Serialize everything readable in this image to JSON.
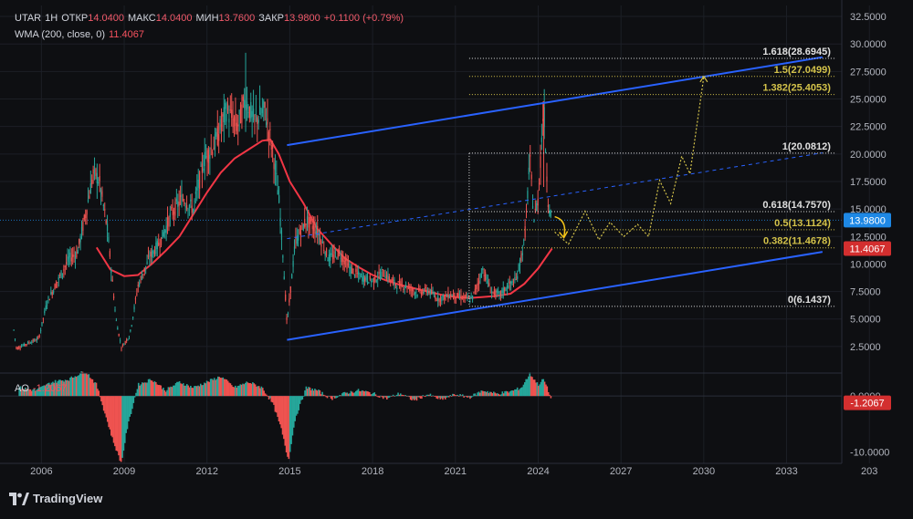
{
  "header": {
    "symbol": "UTAR",
    "interval": "1H",
    "open_label": "ОТКР",
    "open": "14.0400",
    "high_label": "МАКС",
    "high": "14.0400",
    "low_label": "МИН",
    "low": "13.7600",
    "close_label": "ЗАКР",
    "close": "13.9800",
    "change": "+0.1100 (+0.79%)"
  },
  "wma_legend": {
    "label": "WMA (200, close, 0)",
    "value": "11.4067"
  },
  "ao_legend": {
    "label": "AO",
    "value": "-1.2067"
  },
  "brand": "TradingView",
  "colors": {
    "background": "#0e0f12",
    "candle_up": "#26a69a",
    "candle_down": "#ef5350",
    "wma": "#f23645",
    "channel": "#2962ff",
    "fib_white": "#e0e0e0",
    "fib_yellow": "#d4c34a",
    "price_tag": "#1e88e5",
    "wma_tag": "#d32f2f"
  },
  "chart_data": {
    "type": "candlestick",
    "x_axis": {
      "ticks": [
        "2006",
        "2009",
        "2012",
        "2015",
        "2018",
        "2021",
        "2024",
        "2027",
        "2030",
        "2033",
        "203"
      ],
      "range": [
        2004.5,
        2035
      ]
    },
    "y_axis": {
      "ticks": [
        "32.5000",
        "30.0000",
        "27.5000",
        "25.0000",
        "22.5000",
        "20.0000",
        "17.5000",
        "15.0000",
        "12.5000",
        "10.0000",
        "7.5000",
        "5.0000",
        "2.5000"
      ],
      "range": [
        0.5,
        33.5
      ]
    },
    "price_series": [
      [
        2005.0,
        4
      ],
      [
        2005.1,
        2.3
      ],
      [
        2005.5,
        2.8
      ],
      [
        2005.9,
        3.2
      ],
      [
        2006.2,
        6.5
      ],
      [
        2006.6,
        8.5
      ],
      [
        2007.0,
        10.5
      ],
      [
        2007.3,
        11
      ],
      [
        2007.6,
        14.5
      ],
      [
        2007.9,
        18.5
      ],
      [
        2008.1,
        17.5
      ],
      [
        2008.4,
        13
      ],
      [
        2008.7,
        5
      ],
      [
        2008.9,
        2.4
      ],
      [
        2009.2,
        3.5
      ],
      [
        2009.5,
        8
      ],
      [
        2009.9,
        10.5
      ],
      [
        2010.3,
        12
      ],
      [
        2010.7,
        14.5
      ],
      [
        2011.1,
        16
      ],
      [
        2011.5,
        15
      ],
      [
        2011.9,
        19.5
      ],
      [
        2012.3,
        21
      ],
      [
        2012.7,
        24
      ],
      [
        2013.1,
        22.5
      ],
      [
        2013.4,
        25
      ],
      [
        2013.7,
        23
      ],
      [
        2014.1,
        24
      ],
      [
        2014.4,
        20
      ],
      [
        2014.6,
        16
      ],
      [
        2014.75,
        11
      ],
      [
        2014.9,
        4.5
      ],
      [
        2015.2,
        12
      ],
      [
        2015.6,
        14
      ],
      [
        2016.0,
        13
      ],
      [
        2016.4,
        10.5
      ],
      [
        2016.8,
        11
      ],
      [
        2017.2,
        9.5
      ],
      [
        2017.6,
        8.8
      ],
      [
        2018.0,
        8.5
      ],
      [
        2018.4,
        9.2
      ],
      [
        2018.8,
        8.2
      ],
      [
        2019.2,
        8
      ],
      [
        2019.6,
        7.4
      ],
      [
        2020.0,
        7.6
      ],
      [
        2020.4,
        6.8
      ],
      [
        2020.8,
        7.2
      ],
      [
        2021.2,
        7
      ],
      [
        2021.6,
        6.8
      ],
      [
        2022.0,
        9.5
      ],
      [
        2022.3,
        7.5
      ],
      [
        2022.6,
        7.2
      ],
      [
        2022.9,
        8
      ],
      [
        2023.2,
        8.5
      ],
      [
        2023.5,
        12
      ],
      [
        2023.7,
        19.5
      ],
      [
        2023.85,
        14
      ],
      [
        2024.0,
        16
      ],
      [
        2024.2,
        24.5
      ],
      [
        2024.35,
        16
      ],
      [
        2024.5,
        13.98
      ]
    ],
    "wma_series": [
      [
        2008.0,
        11.5
      ],
      [
        2008.5,
        9.5
      ],
      [
        2009.0,
        8.9
      ],
      [
        2009.5,
        9
      ],
      [
        2010.0,
        10
      ],
      [
        2010.5,
        11.2
      ],
      [
        2011.0,
        12.5
      ],
      [
        2011.5,
        14.5
      ],
      [
        2012.0,
        16.5
      ],
      [
        2012.5,
        18.3
      ],
      [
        2013.0,
        19.6
      ],
      [
        2013.5,
        20.4
      ],
      [
        2014.0,
        21.2
      ],
      [
        2014.3,
        21.3
      ],
      [
        2014.6,
        20
      ],
      [
        2015.0,
        17.5
      ],
      [
        2015.5,
        15.5
      ],
      [
        2016.0,
        13.2
      ],
      [
        2016.5,
        11.8
      ],
      [
        2017.0,
        10.5
      ],
      [
        2017.5,
        9.7
      ],
      [
        2018.0,
        9
      ],
      [
        2018.5,
        8.5
      ],
      [
        2019.0,
        8.1
      ],
      [
        2019.5,
        7.8
      ],
      [
        2020.0,
        7.5
      ],
      [
        2020.5,
        7.2
      ],
      [
        2021.0,
        7
      ],
      [
        2021.5,
        6.9
      ],
      [
        2022.0,
        7
      ],
      [
        2022.5,
        7.1
      ],
      [
        2023.0,
        7.3
      ],
      [
        2023.5,
        8.2
      ],
      [
        2024.0,
        9.6
      ],
      [
        2024.5,
        11.4067
      ]
    ],
    "fibonacci": {
      "x_range": [
        2021.5,
        2034.8
      ],
      "levels": [
        {
          "label": "1.618(28.6945)",
          "value": 28.6945,
          "color": "white"
        },
        {
          "label": "1.5(27.0499)",
          "value": 27.0499,
          "color": "yellow"
        },
        {
          "label": "1.382(25.4053)",
          "value": 25.4053,
          "color": "yellow"
        },
        {
          "label": "1(20.0812)",
          "value": 20.0812,
          "color": "white"
        },
        {
          "label": "0.618(14.7570)",
          "value": 14.757,
          "color": "white"
        },
        {
          "label": "0.5(13.1124)",
          "value": 13.1124,
          "color": "yellow"
        },
        {
          "label": "0.382(11.4678)",
          "value": 11.4678,
          "color": "yellow"
        },
        {
          "label": "0(6.1437)",
          "value": 6.1437,
          "color": "white"
        }
      ]
    },
    "channel": {
      "upper": [
        [
          2014.9,
          20.8
        ],
        [
          2034.3,
          28.8
        ]
      ],
      "middle_dashed": [
        [
          2014.9,
          12.3
        ],
        [
          2034.3,
          20.1
        ]
      ],
      "lower": [
        [
          2014.9,
          3.1
        ],
        [
          2034.3,
          11.1
        ]
      ]
    },
    "projection_path": [
      [
        2024.6,
        12.9
      ],
      [
        2025.1,
        11.8
      ],
      [
        2025.7,
        14.8
      ],
      [
        2026.2,
        12.2
      ],
      [
        2026.6,
        13.8
      ],
      [
        2027.1,
        12.5
      ],
      [
        2027.6,
        13.6
      ],
      [
        2028.0,
        12.5
      ],
      [
        2028.4,
        17.6
      ],
      [
        2028.8,
        15.5
      ],
      [
        2029.2,
        19.8
      ],
      [
        2029.5,
        18.2
      ],
      [
        2030.0,
        27.05
      ]
    ],
    "price_tags": [
      {
        "label": "13.9800",
        "value": 13.98,
        "color": "blue"
      },
      {
        "label": "11.4067",
        "value": 11.4067,
        "color": "red"
      }
    ],
    "ao_indicator": {
      "y_ticks": [
        "0.0000",
        "-10.0000"
      ],
      "tag": "-1.2067",
      "bars": [
        [
          2005.2,
          1.5
        ],
        [
          2005.8,
          1
        ],
        [
          2006.4,
          2.5
        ],
        [
          2007.0,
          3
        ],
        [
          2007.6,
          4.5
        ],
        [
          2008.0,
          2
        ],
        [
          2008.3,
          -3
        ],
        [
          2008.6,
          -8
        ],
        [
          2008.9,
          -12
        ],
        [
          2009.1,
          -6
        ],
        [
          2009.5,
          2
        ],
        [
          2010.0,
          3
        ],
        [
          2010.5,
          1
        ],
        [
          2011.0,
          2.5
        ],
        [
          2011.5,
          1.5
        ],
        [
          2012.0,
          2.5
        ],
        [
          2012.5,
          3.5
        ],
        [
          2013.0,
          1.5
        ],
        [
          2013.5,
          2.5
        ],
        [
          2014.0,
          1.5
        ],
        [
          2014.4,
          -1.5
        ],
        [
          2014.7,
          -6
        ],
        [
          2014.95,
          -11.5
        ],
        [
          2015.2,
          -4
        ],
        [
          2015.6,
          1.5
        ],
        [
          2016.0,
          1
        ],
        [
          2016.5,
          -0.5
        ],
        [
          2017.0,
          0.5
        ],
        [
          2017.5,
          1
        ],
        [
          2018.0,
          0.5
        ],
        [
          2018.5,
          -0.5
        ],
        [
          2019.0,
          0.5
        ],
        [
          2019.5,
          -0.8
        ],
        [
          2020.0,
          0.3
        ],
        [
          2020.5,
          -0.7
        ],
        [
          2021.0,
          0.3
        ],
        [
          2021.5,
          -0.3
        ],
        [
          2022.0,
          1
        ],
        [
          2022.5,
          0.4
        ],
        [
          2023.0,
          0.8
        ],
        [
          2023.4,
          1.5
        ],
        [
          2023.7,
          4
        ],
        [
          2024.0,
          2
        ],
        [
          2024.2,
          3
        ],
        [
          2024.4,
          0.5
        ],
        [
          2024.5,
          -1.2067
        ]
      ]
    }
  }
}
